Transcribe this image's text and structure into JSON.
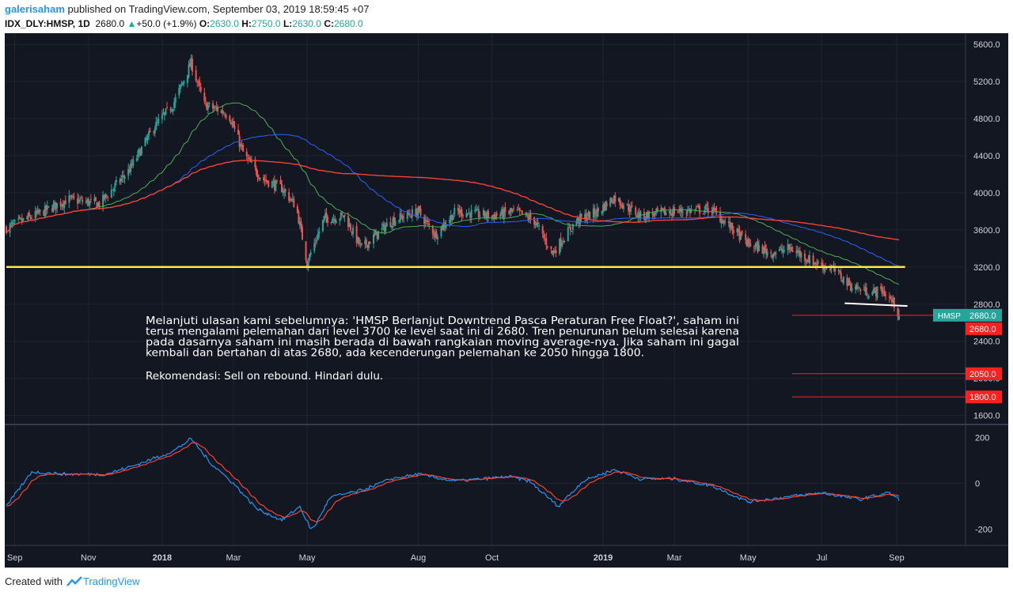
{
  "header": {
    "author": "galerisaham",
    "published_text": " published on TradingView.com, September 03, 2019 18:59:45 +07",
    "symbol": "IDX_DLY:HMSP, 1D",
    "last": "2680.0",
    "change_arrow": "▲",
    "change": "+50.0 (+1.9%)",
    "open_label": "O:",
    "open": "2630.0",
    "high_label": "H:",
    "high": "2750.0",
    "low_label": "L:",
    "low": "2630.0",
    "close_label": "C:",
    "close": "2680.0"
  },
  "footer": {
    "created_with": "Created with",
    "brand": "TradingView"
  },
  "colors": {
    "background": "#131722",
    "up": "#26a69a",
    "down": "#ef5350",
    "ma_fast": "#4caf50",
    "ma_mid": "#2962ff",
    "ma_slow": "#f44336",
    "support": "#ffeb3b",
    "neckline": "#ffffff",
    "level": "#ff2020",
    "macd": "#2196f3",
    "signal": "#f44336",
    "text": "#d1d4dc"
  },
  "annotation": {
    "paragraph_lines": [
      "Melanjuti ulasan kami sebelumnya: 'HMSP Berlanjut Downtrend Pasca Peraturan Free Float?', saham ini",
      "terus mengalami pelemahan dari level 3700 ke level saat ini di 2680. Tren penurunan belum selesai karena",
      "pada dasarnya saham ini masih berada di bawah rangkaian moving average-nya. Jika saham ini gagal",
      "kembali dan bertahan di atas 2680, ada kecenderungan pelemahan ke 2050 hingga 1800."
    ],
    "recommendation": "Rekomendasi: Sell on rebound. Hindari dulu."
  },
  "chart_data": {
    "type": "candlestick",
    "symbol_badge": "HMSP",
    "price_axis": {
      "ticks": [
        1600,
        2000,
        2400,
        2800,
        3200,
        3600,
        4000,
        4400,
        4800,
        5200,
        5600
      ],
      "tick_labels": [
        "1600.0",
        "2000.0",
        "2400.0",
        "2800.0",
        "3200.0",
        "3600.0",
        "4000.0",
        "4400.0",
        "4800.0",
        "5200.0",
        "5600.0"
      ],
      "range": [
        1520,
        5720
      ]
    },
    "x_axis": {
      "labels": [
        "Sep",
        "Nov",
        "2018",
        "Mar",
        "May",
        "Aug",
        "Oct",
        "2019",
        "Mar",
        "May",
        "Jul",
        "Sep"
      ],
      "range": [
        "2017-08-25",
        "2019-09-03"
      ]
    },
    "price_anchors": [
      [
        "2017-08-25",
        3620
      ],
      [
        "2017-09-25",
        3800
      ],
      [
        "2017-10-15",
        3930
      ],
      [
        "2017-11-10",
        3880
      ],
      [
        "2017-12-05",
        4250
      ],
      [
        "2017-12-25",
        4700
      ],
      [
        "2018-01-10",
        4950
      ],
      [
        "2018-01-25",
        5400
      ],
      [
        "2018-02-05",
        4950
      ],
      [
        "2018-02-25",
        4850
      ],
      [
        "2018-03-10",
        4400
      ],
      [
        "2018-03-25",
        4150
      ],
      [
        "2018-04-10",
        4050
      ],
      [
        "2018-04-22",
        3850
      ],
      [
        "2018-05-01",
        3250
      ],
      [
        "2018-05-15",
        3720
      ],
      [
        "2018-06-01",
        3750
      ],
      [
        "2018-06-15",
        3400
      ],
      [
        "2018-07-10",
        3700
      ],
      [
        "2018-08-01",
        3800
      ],
      [
        "2018-08-15",
        3550
      ],
      [
        "2018-09-01",
        3800
      ],
      [
        "2018-10-01",
        3750
      ],
      [
        "2018-10-20",
        3800
      ],
      [
        "2018-11-05",
        3700
      ],
      [
        "2018-11-20",
        3350
      ],
      [
        "2018-12-10",
        3700
      ],
      [
        "2018-12-28",
        3800
      ],
      [
        "2019-01-10",
        3950
      ],
      [
        "2019-02-01",
        3750
      ],
      [
        "2019-03-01",
        3800
      ],
      [
        "2019-04-01",
        3820
      ],
      [
        "2019-04-15",
        3650
      ],
      [
        "2019-05-01",
        3450
      ],
      [
        "2019-05-20",
        3350
      ],
      [
        "2019-06-05",
        3400
      ],
      [
        "2019-06-25",
        3250
      ],
      [
        "2019-07-10",
        3180
      ],
      [
        "2019-07-25",
        3000
      ],
      [
        "2019-08-10",
        2920
      ],
      [
        "2019-08-20",
        2950
      ],
      [
        "2019-08-30",
        2800
      ],
      [
        "2019-09-03",
        2680
      ]
    ],
    "support_line": {
      "value": 3200,
      "from": "2017-08-25",
      "to": "2019-09-08"
    },
    "neckline": {
      "from": [
        "2019-07-20",
        2810
      ],
      "to": [
        "2019-09-10",
        2780
      ]
    },
    "levels": [
      {
        "value": 2680,
        "label": "2680.0"
      },
      {
        "value": 2050,
        "label": "2050.0"
      },
      {
        "value": 1800,
        "label": "1800.0"
      }
    ],
    "last_price": {
      "value": 2680,
      "label": "2680.0"
    },
    "oscillator": {
      "ticks": [
        -200,
        0,
        200
      ],
      "tick_labels": [
        "-200",
        "0",
        "200"
      ],
      "range": [
        -270,
        250
      ],
      "macd_anchors": [
        [
          "2017-08-25",
          -100
        ],
        [
          "2017-09-15",
          50
        ],
        [
          "2017-10-15",
          40
        ],
        [
          "2017-11-15",
          40
        ],
        [
          "2017-12-10",
          80
        ],
        [
          "2018-01-10",
          140
        ],
        [
          "2018-01-25",
          195
        ],
        [
          "2018-02-10",
          90
        ],
        [
          "2018-03-01",
          0
        ],
        [
          "2018-03-20",
          -110
        ],
        [
          "2018-04-10",
          -160
        ],
        [
          "2018-04-25",
          -100
        ],
        [
          "2018-05-05",
          -210
        ],
        [
          "2018-05-20",
          -60
        ],
        [
          "2018-06-15",
          -30
        ],
        [
          "2018-07-10",
          20
        ],
        [
          "2018-08-01",
          40
        ],
        [
          "2018-09-01",
          10
        ],
        [
          "2018-10-15",
          30
        ],
        [
          "2018-11-01",
          10
        ],
        [
          "2018-11-25",
          -100
        ],
        [
          "2018-12-15",
          10
        ],
        [
          "2019-01-10",
          60
        ],
        [
          "2019-02-01",
          20
        ],
        [
          "2019-03-01",
          20
        ],
        [
          "2019-04-01",
          -10
        ],
        [
          "2019-05-01",
          -80
        ],
        [
          "2019-06-01",
          -60
        ],
        [
          "2019-07-01",
          -40
        ],
        [
          "2019-08-01",
          -70
        ],
        [
          "2019-08-25",
          -40
        ],
        [
          "2019-09-03",
          -70
        ]
      ]
    }
  }
}
